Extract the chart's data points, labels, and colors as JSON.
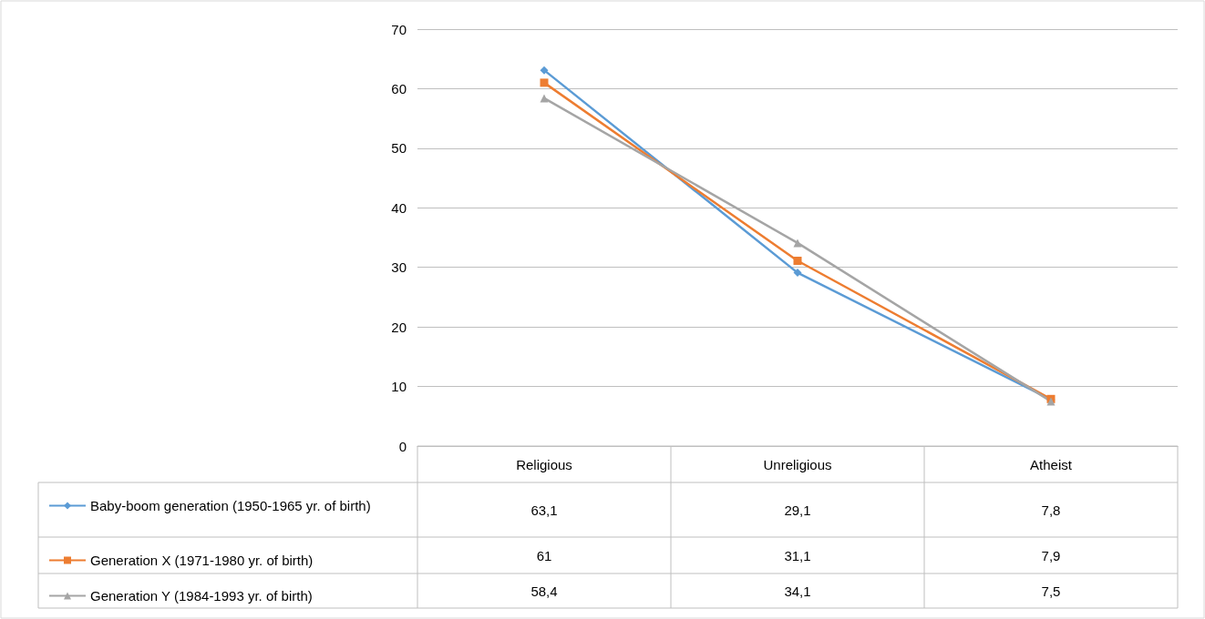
{
  "chart_data": {
    "type": "line",
    "categories": [
      "Religious",
      "Unreligious",
      "Atheist"
    ],
    "series": [
      {
        "name": "Baby-boom generation (1950-1965 yr. of birth)",
        "color": "#5b9bd5",
        "marker": "diamond",
        "values": [
          63.1,
          29.1,
          7.8
        ],
        "value_labels": [
          "63,1",
          "29,1",
          "7,8"
        ]
      },
      {
        "name": "Generation X (1971-1980 yr. of birth)",
        "color": "#ed7d31",
        "marker": "square",
        "values": [
          61,
          31.1,
          7.9
        ],
        "value_labels": [
          "61",
          "31,1",
          "7,9"
        ]
      },
      {
        "name": "Generation Y (1984-1993 yr. of birth)",
        "color": "#a5a5a5",
        "marker": "triangle",
        "values": [
          58.4,
          34.1,
          7.5
        ],
        "value_labels": [
          "58,4",
          "34,1",
          "7,5"
        ]
      }
    ],
    "ylim": [
      0,
      70
    ],
    "yticks": [
      0,
      10,
      20,
      30,
      40,
      50,
      60,
      70
    ],
    "grid": "y",
    "legend": "bottom left"
  }
}
